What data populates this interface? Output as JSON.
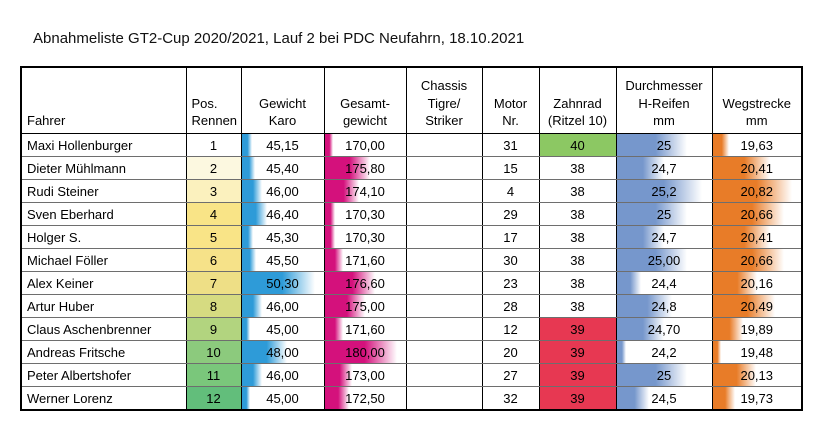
{
  "page_title": "Abnahmeliste GT2-Cup 2020/2021, Lauf 2 bei PDC Neufahrn, 18.10.2021",
  "colors": {
    "gewicht_bar": "#2E9BD8",
    "gesamt_bar": "#D4117C",
    "durchmesser_bar": "#7697CC",
    "wegstrecke_bar": "#E87C28",
    "zahnrad_green": "#8CC863",
    "zahnrad_red": "#E73852",
    "grid_line": "#6e6e6e"
  },
  "table": {
    "columns": [
      {
        "key": "fahrer",
        "label": "Fahrer"
      },
      {
        "key": "pos",
        "label": "Pos.\nRennen"
      },
      {
        "key": "gewicht",
        "label": "Gewicht\nKaro"
      },
      {
        "key": "gesamt",
        "label": "Gesamt-\ngewicht"
      },
      {
        "key": "chassis",
        "label": "Chassis\nTigre/\nStriker"
      },
      {
        "key": "motor",
        "label": "Motor\nNr."
      },
      {
        "key": "zahnrad",
        "label": "Zahnrad\n(Ritzel 10)"
      },
      {
        "key": "durchmesser",
        "label": "Durchmesser\nH-Reifen\nmm"
      },
      {
        "key": "wegstrecke",
        "label": "Wegstrecke\nmm"
      }
    ],
    "rows": [
      {
        "fahrer": "Maxi Hollenburger",
        "pos": "1",
        "pos_bg": "#FFFFFF",
        "gewicht": {
          "text": "45,15",
          "pct": 12.3
        },
        "gesamt": {
          "text": "170,00",
          "pct": 10
        },
        "chassis": "",
        "motor": "31",
        "zahnrad": {
          "text": "40",
          "bg": "#8CC863"
        },
        "durchmesser": {
          "text": "25",
          "pct": 74
        },
        "wegstrecke": {
          "text": "19,63",
          "pct": 19
        }
      },
      {
        "fahrer": "Dieter Mühlmann",
        "pos": "2",
        "pos_bg": "#FCF8E0",
        "gewicht": {
          "text": "45,40",
          "pct": 16
        },
        "gesamt": {
          "text": "175,80",
          "pct": 56.4
        },
        "chassis": "",
        "motor": "15",
        "zahnrad": {
          "text": "38",
          "bg": ""
        },
        "durchmesser": {
          "text": "24,7",
          "pct": 50
        },
        "wegstrecke": {
          "text": "20,41",
          "pct": 65.5
        }
      },
      {
        "fahrer": "Rudi Steiner",
        "pos": "3",
        "pos_bg": "#FBF1BE",
        "gewicht": {
          "text": "46,00",
          "pct": 25.1
        },
        "gesamt": {
          "text": "174,10",
          "pct": 42.8
        },
        "chassis": "",
        "motor": "4",
        "zahnrad": {
          "text": "38",
          "bg": ""
        },
        "durchmesser": {
          "text": "25,2",
          "pct": 90
        },
        "wegstrecke": {
          "text": "20,82",
          "pct": 90
        }
      },
      {
        "fahrer": "Sven Eberhard",
        "pos": "4",
        "pos_bg": "#F9E487",
        "gewicht": {
          "text": "46,40",
          "pct": 31.1
        },
        "gesamt": {
          "text": "170,30",
          "pct": 12.4
        },
        "chassis": "",
        "motor": "29",
        "zahnrad": {
          "text": "38",
          "bg": ""
        },
        "durchmesser": {
          "text": "25",
          "pct": 74
        },
        "wegstrecke": {
          "text": "20,66",
          "pct": 80.4
        }
      },
      {
        "fahrer": "Holger S.",
        "pos": "5",
        "pos_bg": "#F9E487",
        "gewicht": {
          "text": "45,30",
          "pct": 14.5
        },
        "gesamt": {
          "text": "170,30",
          "pct": 12.4
        },
        "chassis": "",
        "motor": "17",
        "zahnrad": {
          "text": "38",
          "bg": ""
        },
        "durchmesser": {
          "text": "24,7",
          "pct": 50
        },
        "wegstrecke": {
          "text": "20,41",
          "pct": 65.5
        }
      },
      {
        "fahrer": "Michael Föller",
        "pos": "6",
        "pos_bg": "#F6E289",
        "gewicht": {
          "text": "45,50",
          "pct": 17.5
        },
        "gesamt": {
          "text": "171,60",
          "pct": 22.8
        },
        "chassis": "",
        "motor": "30",
        "zahnrad": {
          "text": "38",
          "bg": ""
        },
        "durchmesser": {
          "text": "25,00",
          "pct": 74
        },
        "wegstrecke": {
          "text": "20,66",
          "pct": 80.4
        }
      },
      {
        "fahrer": "Alex Keiner",
        "pos": "7",
        "pos_bg": "#EEDF86",
        "gewicht": {
          "text": "50,30",
          "pct": 90
        },
        "gesamt": {
          "text": "176,60",
          "pct": 62.8
        },
        "chassis": "",
        "motor": "23",
        "zahnrad": {
          "text": "38",
          "bg": ""
        },
        "durchmesser": {
          "text": "24,4",
          "pct": 26
        },
        "wegstrecke": {
          "text": "20,16",
          "pct": 50.6
        }
      },
      {
        "fahrer": "Artur Huber",
        "pos": "8",
        "pos_bg": "#D6DB81",
        "gewicht": {
          "text": "46,00",
          "pct": 25.1
        },
        "gesamt": {
          "text": "175,00",
          "pct": 50
        },
        "chassis": "",
        "motor": "28",
        "zahnrad": {
          "text": "38",
          "bg": ""
        },
        "durchmesser": {
          "text": "24,8",
          "pct": 58
        },
        "wegstrecke": {
          "text": "20,49",
          "pct": 70.3
        }
      },
      {
        "fahrer": "Claus Aschenbrenner",
        "pos": "9",
        "pos_bg": "#B2D47F",
        "gewicht": {
          "text": "45,00",
          "pct": 10
        },
        "gesamt": {
          "text": "171,60",
          "pct": 22.8
        },
        "chassis": "",
        "motor": "12",
        "zahnrad": {
          "text": "39",
          "bg": "#E73852"
        },
        "durchmesser": {
          "text": "24,70",
          "pct": 50
        },
        "wegstrecke": {
          "text": "19,89",
          "pct": 34.5
        }
      },
      {
        "fahrer": "Andreas Fritsche",
        "pos": "10",
        "pos_bg": "#8CCA7D",
        "gewicht": {
          "text": "48,00",
          "pct": 55.3
        },
        "gesamt": {
          "text": "180,00",
          "pct": 90
        },
        "chassis": "",
        "motor": "20",
        "zahnrad": {
          "text": "39",
          "bg": "#E73852"
        },
        "durchmesser": {
          "text": "24,2",
          "pct": 10
        },
        "wegstrecke": {
          "text": "19,48",
          "pct": 10
        }
      },
      {
        "fahrer": "Peter Albertshofer",
        "pos": "11",
        "pos_bg": "#7AC77B",
        "gewicht": {
          "text": "46,00",
          "pct": 25.1
        },
        "gesamt": {
          "text": "173,00",
          "pct": 34
        },
        "chassis": "",
        "motor": "27",
        "zahnrad": {
          "text": "39",
          "bg": "#E73852"
        },
        "durchmesser": {
          "text": "25",
          "pct": 74
        },
        "wegstrecke": {
          "text": "20,13",
          "pct": 48.8
        }
      },
      {
        "fahrer": "Werner Lorenz",
        "pos": "12",
        "pos_bg": "#62BE7B",
        "gewicht": {
          "text": "45,00",
          "pct": 10
        },
        "gesamt": {
          "text": "172,50",
          "pct": 30
        },
        "chassis": "",
        "motor": "32",
        "zahnrad": {
          "text": "39",
          "bg": "#E73852"
        },
        "durchmesser": {
          "text": "24,5",
          "pct": 34
        },
        "wegstrecke": {
          "text": "19,73",
          "pct": 24.9
        }
      }
    ]
  }
}
